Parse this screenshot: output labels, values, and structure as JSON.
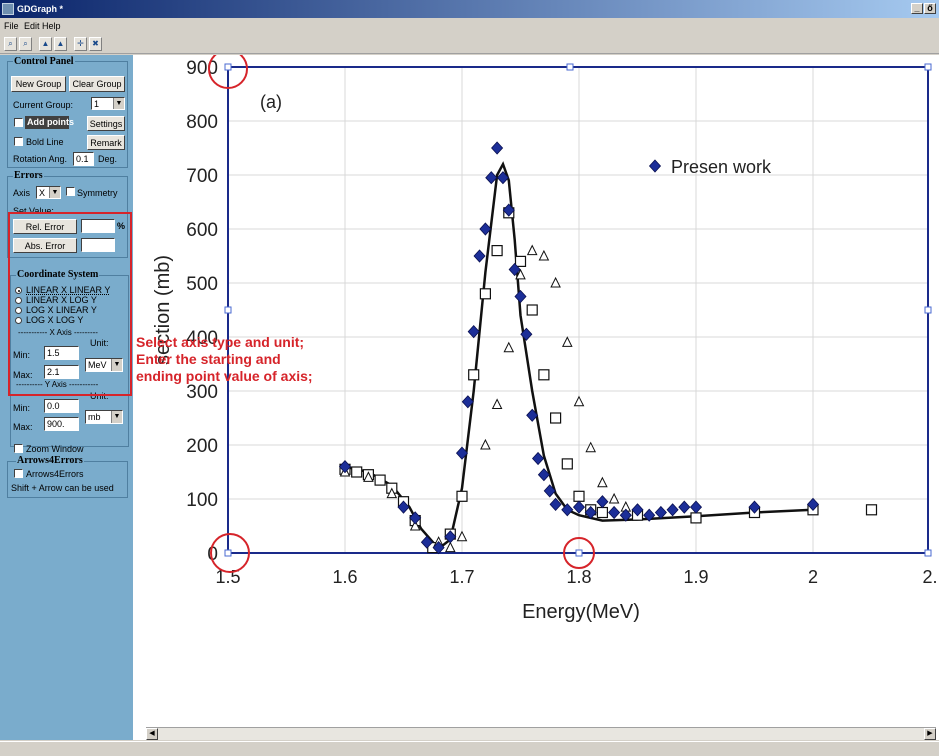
{
  "window": {
    "title": "GDGraph *",
    "controls": [
      "_",
      "ő",
      "×"
    ]
  },
  "menu": [
    "File",
    "Edit",
    "Help"
  ],
  "toolbar": {
    "buttons": [
      "zoom-in",
      "zoom-out",
      "plot-type-a",
      "plot-type-b",
      "move",
      "fit"
    ]
  },
  "control_panel": {
    "title": "Control Panel",
    "new_group": "New Group",
    "clear_group": "Clear Group",
    "current_group_label": "Current Group:",
    "current_group_value": "1",
    "add_points": "Add points",
    "settings": "Settings",
    "bold_line": "Bold Line",
    "remark": "Remark",
    "rotation_label": "Rotation Ang.",
    "rotation_value": "0.1",
    "rotation_unit": "Deg."
  },
  "errors": {
    "title": "Errors",
    "axis_label": "Axis",
    "axis_value": "X",
    "symmetry": "Symmetry",
    "set_value": "Set Value:",
    "rel_error": "Rel. Error",
    "rel_value": "",
    "percent": "%",
    "abs_error": "Abs. Error",
    "abs_value": ""
  },
  "coordinate_system": {
    "title": "Coordinate System",
    "options": [
      "LINEAR X LINEAR Y",
      "LINEAR X LOG Y",
      "LOG X LINEAR Y",
      "LOG X LOG Y"
    ],
    "selected": 0,
    "x_axis_header": "----------- X Axis ---------",
    "y_axis_header": "---------- Y Axis -----------",
    "unit_label": "Unit:",
    "min_label": "Min:",
    "max_label": "Max:",
    "x_min": "1.5",
    "x_max": "2.1",
    "x_unit": "MeV",
    "y_min": "0.0",
    "y_max": "900.",
    "y_unit": "mb"
  },
  "zoom_window": "Zoom Window",
  "arrows": {
    "title": "Arrows4Errors",
    "checkbox": "Arrows4Errors",
    "hint": "Shift + Arrow can be used"
  },
  "annotation": {
    "line1": "Select axis type and unit;",
    "line2": "Enter the starting and",
    "line3": "ending point value of axis;"
  },
  "colors": {
    "panel": "#7aaccc",
    "highlight": "#d6242a",
    "axis_frame": "#1a2a8a",
    "marker": "#1c2e98"
  },
  "chart_data": {
    "type": "scatter",
    "xlabel": "Energy(MeV)",
    "ylabel": "section (mb)",
    "panel_label": "(a)",
    "xlim": [
      1.5,
      2.1
    ],
    "ylim": [
      0,
      900
    ],
    "x_ticks": [
      "1.5",
      "1.6",
      "1.7",
      "1.8",
      "1.9",
      "2",
      "2."
    ],
    "y_ticks": [
      "0",
      "100",
      "200",
      "300",
      "400",
      "500",
      "600",
      "700",
      "800",
      "900"
    ],
    "grid": true,
    "legend": {
      "position": "top-right",
      "entries": [
        "Presen work"
      ]
    },
    "series": [
      {
        "name": "Presen work",
        "marker": "diamond",
        "points": [
          [
            1.6,
            160
          ],
          [
            1.65,
            85
          ],
          [
            1.66,
            65
          ],
          [
            1.67,
            20
          ],
          [
            1.68,
            10
          ],
          [
            1.69,
            30
          ],
          [
            1.7,
            185
          ],
          [
            1.705,
            280
          ],
          [
            1.71,
            410
          ],
          [
            1.715,
            550
          ],
          [
            1.72,
            600
          ],
          [
            1.725,
            695
          ],
          [
            1.73,
            750
          ],
          [
            1.735,
            695
          ],
          [
            1.74,
            635
          ],
          [
            1.745,
            525
          ],
          [
            1.75,
            475
          ],
          [
            1.755,
            405
          ],
          [
            1.76,
            255
          ],
          [
            1.765,
            175
          ],
          [
            1.77,
            145
          ],
          [
            1.775,
            115
          ],
          [
            1.78,
            90
          ],
          [
            1.79,
            80
          ],
          [
            1.8,
            85
          ],
          [
            1.81,
            75
          ],
          [
            1.82,
            95
          ],
          [
            1.83,
            75
          ],
          [
            1.84,
            70
          ],
          [
            1.85,
            80
          ],
          [
            1.86,
            70
          ],
          [
            1.87,
            75
          ],
          [
            1.88,
            80
          ],
          [
            1.89,
            85
          ],
          [
            1.9,
            85
          ],
          [
            1.95,
            85
          ],
          [
            2.0,
            90
          ]
        ]
      },
      {
        "marker": "square",
        "points": [
          [
            1.6,
            155
          ],
          [
            1.61,
            150
          ],
          [
            1.62,
            145
          ],
          [
            1.63,
            135
          ],
          [
            1.64,
            120
          ],
          [
            1.65,
            95
          ],
          [
            1.66,
            60
          ],
          [
            1.675,
            10
          ],
          [
            1.69,
            35
          ],
          [
            1.7,
            105
          ],
          [
            1.71,
            330
          ],
          [
            1.72,
            480
          ],
          [
            1.73,
            560
          ],
          [
            1.74,
            630
          ],
          [
            1.75,
            540
          ],
          [
            1.76,
            450
          ],
          [
            1.77,
            330
          ],
          [
            1.78,
            250
          ],
          [
            1.79,
            165
          ],
          [
            1.8,
            105
          ],
          [
            1.81,
            80
          ],
          [
            1.82,
            75
          ],
          [
            1.85,
            70
          ],
          [
            1.9,
            65
          ],
          [
            1.95,
            75
          ],
          [
            2.0,
            80
          ],
          [
            2.05,
            80
          ]
        ]
      },
      {
        "marker": "triangle",
        "points": [
          [
            1.6,
            150
          ],
          [
            1.62,
            140
          ],
          [
            1.64,
            110
          ],
          [
            1.66,
            50
          ],
          [
            1.68,
            20
          ],
          [
            1.69,
            10
          ],
          [
            1.7,
            30
          ],
          [
            1.72,
            200
          ],
          [
            1.73,
            275
          ],
          [
            1.74,
            380
          ],
          [
            1.75,
            515
          ],
          [
            1.76,
            560
          ],
          [
            1.77,
            550
          ],
          [
            1.78,
            500
          ],
          [
            1.79,
            390
          ],
          [
            1.8,
            280
          ],
          [
            1.81,
            195
          ],
          [
            1.82,
            130
          ],
          [
            1.83,
            100
          ],
          [
            1.84,
            85
          ]
        ]
      }
    ],
    "fit_curve": [
      [
        1.6,
        160
      ],
      [
        1.62,
        150
      ],
      [
        1.64,
        125
      ],
      [
        1.655,
        85
      ],
      [
        1.665,
        45
      ],
      [
        1.68,
        8
      ],
      [
        1.69,
        25
      ],
      [
        1.7,
        120
      ],
      [
        1.71,
        300
      ],
      [
        1.72,
        520
      ],
      [
        1.73,
        700
      ],
      [
        1.735,
        720
      ],
      [
        1.74,
        690
      ],
      [
        1.745,
        580
      ],
      [
        1.75,
        440
      ],
      [
        1.76,
        300
      ],
      [
        1.77,
        180
      ],
      [
        1.78,
        110
      ],
      [
        1.79,
        80
      ],
      [
        1.8,
        70
      ],
      [
        1.82,
        60
      ],
      [
        1.85,
        62
      ],
      [
        1.9,
        68
      ],
      [
        1.95,
        75
      ],
      [
        2.0,
        80
      ]
    ]
  }
}
